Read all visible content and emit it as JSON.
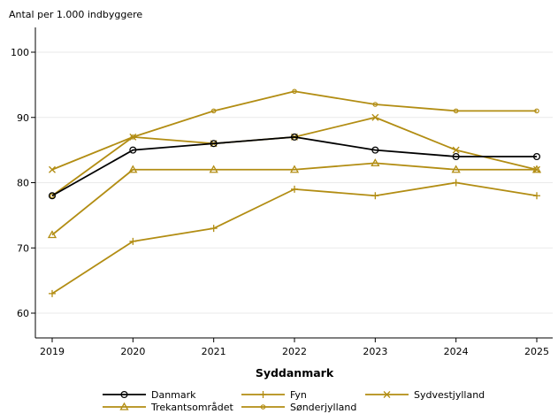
{
  "chart_data": {
    "type": "line",
    "ylabel": "Antal per 1.000 indbyggere",
    "xlabel": "Syddanmark",
    "x": [
      2019,
      2020,
      2021,
      2022,
      2023,
      2024,
      2025
    ],
    "xticks": [
      "2019",
      "2020",
      "2021",
      "2022",
      "2023",
      "2024",
      "2025"
    ],
    "ylim": [
      55,
      105
    ],
    "yticks": [
      "60",
      "70",
      "80",
      "90",
      "100"
    ],
    "grid": true,
    "legend_position": "bottom",
    "series": [
      {
        "name": "Danmark",
        "marker": "circle",
        "color": "#000000",
        "values": [
          78,
          85,
          86,
          87,
          85,
          84,
          84
        ]
      },
      {
        "name": "Fyn",
        "marker": "plus",
        "color": "#b28d13",
        "values": [
          63,
          71,
          73,
          79,
          78,
          80,
          78
        ]
      },
      {
        "name": "Sydvestjylland",
        "marker": "x",
        "color": "#b28d13",
        "values": [
          82,
          87,
          86,
          87,
          90,
          85,
          82
        ]
      },
      {
        "name": "Trekantsområdet",
        "marker": "triangle",
        "color": "#b28d13",
        "values": [
          72,
          82,
          82,
          82,
          83,
          82,
          82
        ]
      },
      {
        "name": "Sønderjylland",
        "marker": "smallcircle",
        "color": "#b28d13",
        "values": [
          78,
          87,
          91,
          94,
          92,
          91,
          91
        ]
      }
    ]
  }
}
